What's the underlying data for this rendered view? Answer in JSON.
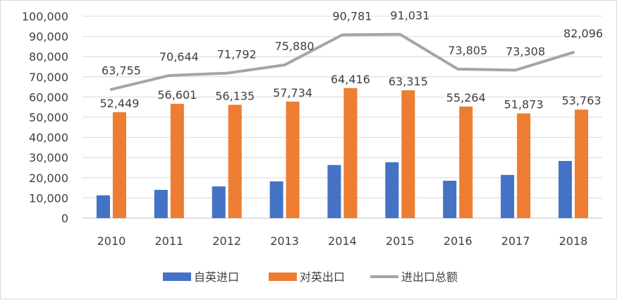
{
  "chart_data": {
    "type": "bar",
    "categories": [
      "2010",
      "2011",
      "2012",
      "2013",
      "2014",
      "2015",
      "2016",
      "2017",
      "2018"
    ],
    "series": [
      {
        "name": "自英进口",
        "type": "bar",
        "color": "#4472C4",
        "values": [
          11300,
          14000,
          15700,
          18200,
          26300,
          27700,
          18500,
          21400,
          28300
        ]
      },
      {
        "name": "对英出口",
        "type": "bar",
        "color": "#ED7D31",
        "values": [
          52449,
          56601,
          56135,
          57734,
          64416,
          63315,
          55264,
          51873,
          53763
        ],
        "labels": [
          "52,449",
          "56,601",
          "56,135",
          "57,734",
          "64,416",
          "63,315",
          "55,264",
          "51,873",
          "53,763"
        ]
      },
      {
        "name": "进出口总额",
        "type": "line",
        "color": "#A5A5A5",
        "values": [
          63755,
          70644,
          71792,
          75880,
          90781,
          91031,
          73805,
          73308,
          82096
        ],
        "labels": [
          "63,755",
          "70,644",
          "71,792",
          "75,880",
          "90,781",
          "91,031",
          "73,805",
          "73,308",
          "82,096"
        ]
      }
    ],
    "ylim": [
      0,
      100000
    ],
    "yticks": [
      "0",
      "10,000",
      "20,000",
      "30,000",
      "40,000",
      "50,000",
      "60,000",
      "70,000",
      "80,000",
      "90,000",
      "100,000"
    ],
    "grid": true,
    "legend": "bottom"
  }
}
